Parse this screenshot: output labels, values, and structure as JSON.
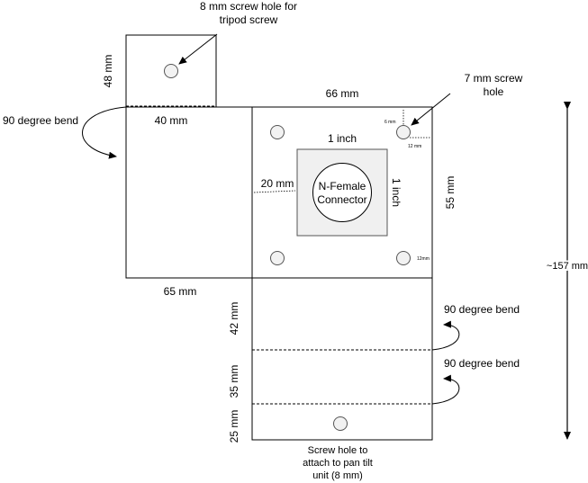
{
  "labels": {
    "tripod_hole_line1": "8 mm screw hole for",
    "tripod_hole_line2": "tripod screw",
    "tab_height": "48 mm",
    "left_bend": "90 degree bend",
    "tab_width": "40 mm",
    "top_width": "66 mm",
    "screw_hole_7_line1": "7 mm screw",
    "screw_hole_7_line2": "hole",
    "offset_6mm": "6 mm",
    "offset_12mm_top": "12 mm",
    "offset_12mm_right": "12mm",
    "square_width": "1 inch",
    "square_height": "1 inch",
    "offset_20mm": "20 mm",
    "connector_line1": "N-Female",
    "connector_line2": "Connector",
    "plate_height": "55 mm",
    "total_height": "~157 mm",
    "left_panel_width": "65 mm",
    "seg1_height": "42 mm",
    "right_bend_1": "90 degree bend",
    "seg2_height": "35 mm",
    "right_bend_2": "90 degree bend",
    "seg3_height": "25 mm",
    "pan_tilt_line1": "Screw hole to",
    "pan_tilt_line2": "attach to pan tilt",
    "pan_tilt_line3": "unit (8 mm)"
  },
  "colors": {
    "stroke": "#000000",
    "hole_fill": "#f2f2f2",
    "square_fill": "#f0f0f0"
  }
}
